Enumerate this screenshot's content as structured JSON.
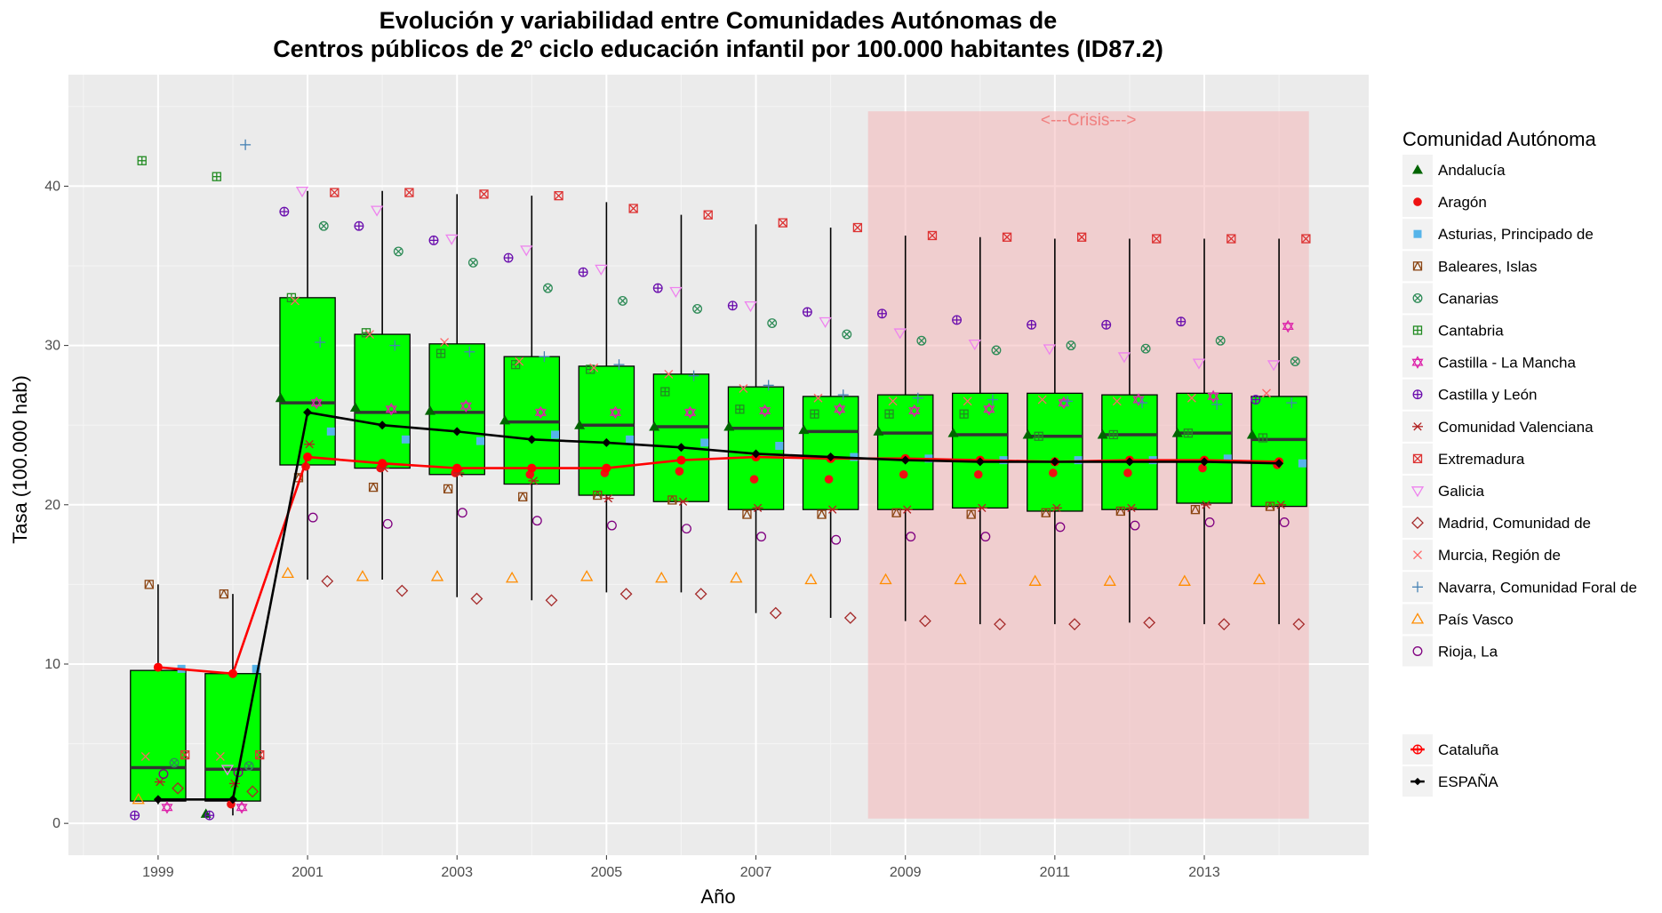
{
  "chart_data": {
    "type": "box",
    "title": "Evolución y variabilidad entre Comunidades Autónomas de",
    "subtitle": "Centros públicos de 2º ciclo educación infantil por 100.000 habitantes (ID87.2)",
    "xlabel": "Año",
    "ylabel": "Tasa (100.000 hab)",
    "xlim": [
      1997.8,
      2015.2
    ],
    "ylim": [
      -2,
      47
    ],
    "x_ticks": [
      1999,
      2001,
      2003,
      2005,
      2007,
      2009,
      2011,
      2013
    ],
    "y_ticks": [
      0,
      10,
      20,
      30,
      40
    ],
    "grid": true,
    "legend_title": "Comunidad Autónoma",
    "legend_position": "right",
    "colors": {
      "panel_bg": "#ebebeb",
      "grid": "#ffffff",
      "box_fill": "#00ff00",
      "box_stroke": "#000000",
      "crisis_fill": "#f4b6b8",
      "spain_line": "#000000",
      "cataluna_line": "#ff0000"
    },
    "crisis": {
      "label": "<---Crisis--->",
      "x_start": 2008.5,
      "x_end": 2014.4,
      "y_bottom": 0.3,
      "y_top": 44.7
    },
    "boxes": [
      {
        "year": 1999,
        "low": 1.2,
        "q1": 1.4,
        "median": 3.5,
        "q3": 9.6,
        "high": 15.0
      },
      {
        "year": 2000,
        "low": 0.5,
        "q1": 1.4,
        "median": 3.4,
        "q3": 9.4,
        "high": 14.4
      },
      {
        "year": 2001,
        "low": 15.3,
        "q1": 22.5,
        "median": 26.4,
        "q3": 33.0,
        "high": 39.7
      },
      {
        "year": 2002,
        "low": 15.3,
        "q1": 22.3,
        "median": 25.8,
        "q3": 30.7,
        "high": 39.7
      },
      {
        "year": 2003,
        "low": 14.2,
        "q1": 21.9,
        "median": 25.8,
        "q3": 30.1,
        "high": 39.5
      },
      {
        "year": 2004,
        "low": 14.0,
        "q1": 21.3,
        "median": 25.2,
        "q3": 29.3,
        "high": 39.4
      },
      {
        "year": 2005,
        "low": 14.5,
        "q1": 20.6,
        "median": 25.0,
        "q3": 28.7,
        "high": 39.0
      },
      {
        "year": 2006,
        "low": 14.5,
        "q1": 20.2,
        "median": 24.9,
        "q3": 28.2,
        "high": 38.2
      },
      {
        "year": 2007,
        "low": 13.2,
        "q1": 19.7,
        "median": 24.8,
        "q3": 27.4,
        "high": 37.6
      },
      {
        "year": 2008,
        "low": 12.9,
        "q1": 19.7,
        "median": 24.6,
        "q3": 26.8,
        "high": 37.4
      },
      {
        "year": 2009,
        "low": 12.7,
        "q1": 19.7,
        "median": 24.5,
        "q3": 26.9,
        "high": 36.9
      },
      {
        "year": 2010,
        "low": 12.5,
        "q1": 19.8,
        "median": 24.4,
        "q3": 27.0,
        "high": 36.8
      },
      {
        "year": 2011,
        "low": 12.5,
        "q1": 19.6,
        "median": 24.3,
        "q3": 27.0,
        "high": 36.7
      },
      {
        "year": 2012,
        "low": 12.6,
        "q1": 19.7,
        "median": 24.4,
        "q3": 26.9,
        "high": 36.7
      },
      {
        "year": 2013,
        "low": 12.5,
        "q1": 20.1,
        "median": 24.5,
        "q3": 27.0,
        "high": 36.7
      },
      {
        "year": 2014,
        "low": 12.5,
        "q1": 19.9,
        "median": 24.1,
        "q3": 26.8,
        "high": 36.7
      }
    ],
    "series": [
      {
        "name": "Andalucía",
        "shape": "triangle-filled",
        "color": "#006400",
        "offset": 0.0,
        "values": [
          null,
          0.6,
          26.7,
          26.1,
          25.9,
          25.3,
          25.0,
          24.9,
          24.9,
          24.7,
          24.6,
          24.5,
          24.4,
          24.4,
          24.5,
          24.4
        ]
      },
      {
        "name": "Aragón",
        "shape": "circle-filled",
        "color": "#ee1111",
        "offset": 0.0,
        "values": [
          null,
          1.2,
          22.4,
          22.3,
          22.0,
          21.9,
          22.0,
          22.1,
          21.6,
          21.6,
          21.9,
          21.9,
          22.0,
          22.0,
          22.3,
          22.5
        ]
      },
      {
        "name": "Asturias, Principado de",
        "shape": "square-filled",
        "color": "#56b4e9",
        "offset": 0.0,
        "values": [
          9.7,
          9.7,
          24.6,
          24.1,
          24.0,
          24.4,
          24.1,
          23.9,
          23.7,
          23.0,
          22.9,
          22.8,
          22.8,
          22.8,
          22.9,
          22.6
        ]
      },
      {
        "name": "Baleares, Islas",
        "shape": "square-x",
        "color": "#8b4513",
        "offset": 0.0,
        "values": [
          15.0,
          14.4,
          21.7,
          21.1,
          21.0,
          20.5,
          20.6,
          20.3,
          19.4,
          19.4,
          19.5,
          19.4,
          19.5,
          19.6,
          19.7,
          19.9
        ]
      },
      {
        "name": "Canarias",
        "shape": "circle-x",
        "color": "#2e8b57",
        "offset": 0.0,
        "values": [
          3.8,
          3.6,
          37.5,
          35.9,
          35.2,
          33.6,
          32.8,
          32.3,
          31.4,
          30.7,
          30.3,
          29.7,
          30.0,
          29.8,
          30.3,
          29.0
        ]
      },
      {
        "name": "Cantabria",
        "shape": "square-plus",
        "color": "#228b22",
        "offset": 0.0,
        "values": [
          41.6,
          40.6,
          33.0,
          30.8,
          29.5,
          28.8,
          28.5,
          27.1,
          26.0,
          25.7,
          25.7,
          25.7,
          24.3,
          24.4,
          24.5,
          24.2
        ]
      },
      {
        "name": "Castilla - La Mancha",
        "shape": "star-of-david",
        "color": "#dd22aa",
        "offset": 0.0,
        "values": [
          1.0,
          1.0,
          26.4,
          26.0,
          26.2,
          25.8,
          25.8,
          25.8,
          25.9,
          26.0,
          25.9,
          26.0,
          26.4,
          26.6,
          26.8,
          31.2
        ]
      },
      {
        "name": "Castilla y León",
        "shape": "circle-plus",
        "color": "#6a0dad",
        "offset": 0.0,
        "values": [
          0.5,
          0.5,
          38.4,
          37.5,
          36.6,
          35.5,
          34.6,
          33.6,
          32.5,
          32.1,
          32.0,
          31.6,
          31.3,
          31.3,
          31.5,
          26.6
        ]
      },
      {
        "name": "Comunidad Valenciana",
        "shape": "asterisk",
        "color": "#b22222",
        "offset": 0.0,
        "values": [
          2.6,
          2.5,
          23.8,
          22.3,
          22.0,
          21.5,
          20.4,
          20.2,
          19.8,
          19.7,
          19.7,
          19.8,
          19.8,
          19.8,
          20.0,
          20.0
        ]
      },
      {
        "name": "Extremadura",
        "shape": "square-x-box",
        "color": "#dd3333",
        "offset": 0.0,
        "values": [
          4.3,
          4.3,
          39.6,
          39.6,
          39.5,
          39.4,
          38.6,
          38.2,
          37.7,
          37.4,
          36.9,
          36.8,
          36.8,
          36.7,
          36.7,
          36.7
        ]
      },
      {
        "name": "Galicia",
        "shape": "triangle-down",
        "color": "#ee82ee",
        "offset": 0.0,
        "values": [
          null,
          3.4,
          39.7,
          38.5,
          36.7,
          36.0,
          34.8,
          33.4,
          32.5,
          31.5,
          30.8,
          30.1,
          29.8,
          29.3,
          28.9,
          28.8
        ]
      },
      {
        "name": "Madrid, Comunidad de",
        "shape": "diamond",
        "color": "#a52a2a",
        "offset": 0.0,
        "values": [
          2.2,
          2.0,
          15.2,
          14.6,
          14.1,
          14.0,
          14.4,
          14.4,
          13.2,
          12.9,
          12.7,
          12.5,
          12.5,
          12.6,
          12.5,
          12.5
        ]
      },
      {
        "name": "Murcia, Región de",
        "shape": "x",
        "color": "#ff6666",
        "offset": 0.0,
        "values": [
          4.2,
          4.2,
          32.8,
          30.7,
          30.2,
          29.0,
          28.6,
          28.2,
          27.3,
          26.7,
          26.5,
          26.5,
          26.6,
          26.5,
          26.7,
          27.0
        ]
      },
      {
        "name": "Navarra, Comunidad Foral de",
        "shape": "plus",
        "color": "#4682b4",
        "offset": 0.0,
        "values": [
          null,
          42.6,
          30.2,
          30.0,
          29.6,
          29.3,
          28.8,
          28.1,
          27.5,
          26.9,
          26.7,
          26.6,
          26.5,
          26.4,
          26.3,
          26.4
        ]
      },
      {
        "name": "País Vasco",
        "shape": "triangle-open",
        "color": "#ff8c00",
        "offset": 0.0,
        "values": [
          1.5,
          null,
          15.7,
          15.5,
          15.5,
          15.4,
          15.5,
          15.4,
          15.4,
          15.3,
          15.3,
          15.3,
          15.2,
          15.2,
          15.2,
          15.3
        ]
      },
      {
        "name": "Rioja, La",
        "shape": "circle-open",
        "color": "#800080",
        "offset": 0.0,
        "values": [
          3.1,
          3.2,
          19.2,
          18.8,
          19.5,
          19.0,
          18.7,
          18.5,
          18.0,
          17.8,
          18.0,
          18.0,
          18.6,
          18.7,
          18.9,
          18.9
        ]
      }
    ],
    "lines": [
      {
        "name": "Cataluña",
        "shape": "circle-cross-line",
        "color": "#ff0000",
        "values": [
          9.8,
          9.4,
          23.0,
          22.6,
          22.3,
          22.3,
          22.3,
          22.8,
          23.0,
          22.9,
          22.9,
          22.8,
          22.7,
          22.8,
          22.8,
          22.7
        ]
      },
      {
        "name": "ESPAÑA",
        "shape": "diamond-filled",
        "color": "#000000",
        "values": [
          1.5,
          1.5,
          25.8,
          25.0,
          24.6,
          24.1,
          23.9,
          23.6,
          23.2,
          23.0,
          22.8,
          22.7,
          22.7,
          22.7,
          22.7,
          22.6
        ]
      }
    ]
  }
}
